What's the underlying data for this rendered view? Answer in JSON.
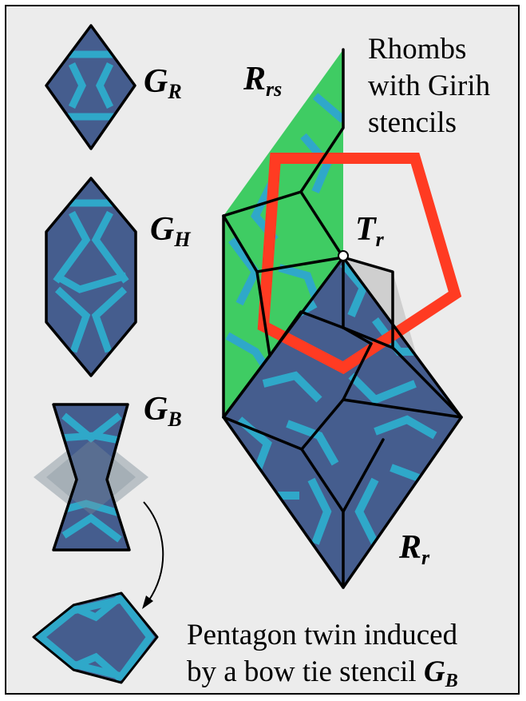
{
  "labels": {
    "g_r": {
      "main": "G",
      "sub": "R"
    },
    "g_h": {
      "main": "G",
      "sub": "H"
    },
    "g_b": {
      "main": "G",
      "sub": "B"
    },
    "r_rs": {
      "main": "R",
      "sub": "rs"
    },
    "t_r": {
      "main": "T",
      "sub": "r"
    },
    "r_r": {
      "main": "R",
      "sub": "r"
    }
  },
  "caption_top": [
    "Rhombs",
    "with Girih",
    "stencils"
  ],
  "caption_bottom": {
    "line1": "Pentagon twin induced",
    "line2": "by a bow tie stencil ",
    "symbol_main": "G",
    "symbol_sub": "B"
  },
  "colors": {
    "tile": "#455d8e",
    "strap": "#2fa8c9",
    "rhomb_thin": "#3fcc63",
    "highlight": "#ff3b22",
    "ghost": "#7f8f99",
    "background": "#ececec",
    "line": "#000000"
  }
}
